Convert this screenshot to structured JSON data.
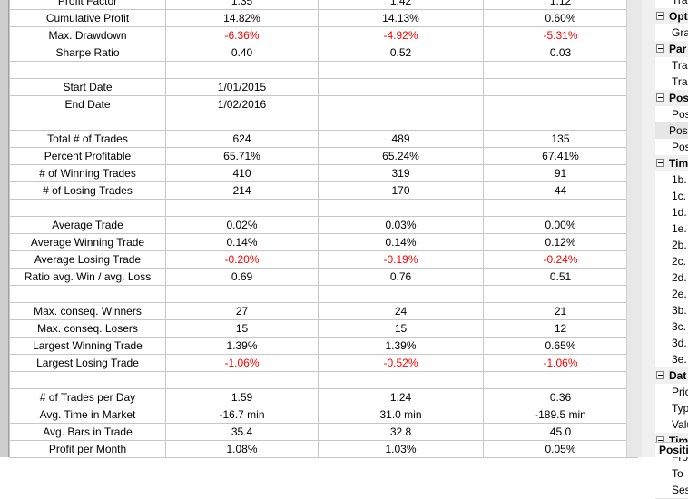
{
  "table": {
    "rows": [
      {
        "label": "Profit Factor",
        "values": [
          "1.35",
          "1.42",
          "1.12"
        ],
        "neg": false
      },
      {
        "label": "Cumulative Profit",
        "values": [
          "14.82%",
          "14.13%",
          "0.60%"
        ],
        "neg": false
      },
      {
        "label": "Max. Drawdown",
        "values": [
          "-6.36%",
          "-4.92%",
          "-5.31%"
        ],
        "neg": true
      },
      {
        "label": "Sharpe Ratio",
        "values": [
          "0.40",
          "0.52",
          "0.03"
        ],
        "neg": false
      },
      {
        "label": "",
        "values": [
          "",
          "",
          ""
        ],
        "neg": false
      },
      {
        "label": "Start Date",
        "values": [
          "1/01/2015",
          "",
          ""
        ],
        "neg": false
      },
      {
        "label": "End Date",
        "values": [
          "1/02/2016",
          "",
          ""
        ],
        "neg": false
      },
      {
        "label": "",
        "values": [
          "",
          "",
          ""
        ],
        "neg": false
      },
      {
        "label": "Total # of Trades",
        "values": [
          "624",
          "489",
          "135"
        ],
        "neg": false
      },
      {
        "label": "Percent Profitable",
        "values": [
          "65.71%",
          "65.24%",
          "67.41%"
        ],
        "neg": false
      },
      {
        "label": "# of Winning Trades",
        "values": [
          "410",
          "319",
          "91"
        ],
        "neg": false
      },
      {
        "label": "# of Losing Trades",
        "values": [
          "214",
          "170",
          "44"
        ],
        "neg": false
      },
      {
        "label": "",
        "values": [
          "",
          "",
          ""
        ],
        "neg": false
      },
      {
        "label": "Average Trade",
        "values": [
          "0.02%",
          "0.03%",
          "0.00%"
        ],
        "neg": false
      },
      {
        "label": "Average Winning Trade",
        "values": [
          "0.14%",
          "0.14%",
          "0.12%"
        ],
        "neg": false
      },
      {
        "label": "Average Losing Trade",
        "values": [
          "-0.20%",
          "-0.19%",
          "-0.24%"
        ],
        "neg": true
      },
      {
        "label": "Ratio avg. Win / avg. Loss",
        "values": [
          "0.69",
          "0.76",
          "0.51"
        ],
        "neg": false
      },
      {
        "label": "",
        "values": [
          "",
          "",
          ""
        ],
        "neg": false
      },
      {
        "label": "Max. conseq. Winners",
        "values": [
          "27",
          "24",
          "21"
        ],
        "neg": false
      },
      {
        "label": "Max. conseq. Losers",
        "values": [
          "15",
          "15",
          "12"
        ],
        "neg": false
      },
      {
        "label": "Largest Winning Trade",
        "values": [
          "1.39%",
          "1.39%",
          "0.65%"
        ],
        "neg": false
      },
      {
        "label": "Largest Losing Trade",
        "values": [
          "-1.06%",
          "-0.52%",
          "-1.06%"
        ],
        "neg": true
      },
      {
        "label": "",
        "values": [
          "",
          "",
          ""
        ],
        "neg": false
      },
      {
        "label": "# of Trades per Day",
        "values": [
          "1.59",
          "1.24",
          "0.36"
        ],
        "neg": false
      },
      {
        "label": "Avg. Time in Market",
        "values": [
          "-16.7 min",
          "31.0 min",
          "-189.5 min"
        ],
        "neg": false
      },
      {
        "label": "Avg. Bars in Trade",
        "values": [
          "35.4",
          "32.8",
          "45.0"
        ],
        "neg": false
      },
      {
        "label": "Profit per Month",
        "values": [
          "1.08%",
          "1.03%",
          "0.05%"
        ],
        "neg": false
      }
    ]
  },
  "property_grid": {
    "rows": [
      {
        "text": "Tra",
        "kind": "item"
      },
      {
        "text": "Opt",
        "kind": "cat"
      },
      {
        "text": "Gra",
        "kind": "item"
      },
      {
        "text": "Par",
        "kind": "cat"
      },
      {
        "text": "Tra",
        "kind": "item"
      },
      {
        "text": "Tra",
        "kind": "item"
      },
      {
        "text": "Pos",
        "kind": "cat"
      },
      {
        "text": "Pos",
        "kind": "item"
      },
      {
        "text": "Pos",
        "kind": "sel"
      },
      {
        "text": "Pos",
        "kind": "item"
      },
      {
        "text": "Tim",
        "kind": "cat"
      },
      {
        "text": "1b.",
        "kind": "item"
      },
      {
        "text": "1c.",
        "kind": "item"
      },
      {
        "text": "1d.",
        "kind": "item"
      },
      {
        "text": "1e.",
        "kind": "item"
      },
      {
        "text": "2b.",
        "kind": "item"
      },
      {
        "text": "2c.",
        "kind": "item"
      },
      {
        "text": "2d.",
        "kind": "item"
      },
      {
        "text": "2e.",
        "kind": "item"
      },
      {
        "text": "3b.",
        "kind": "item"
      },
      {
        "text": "3c.",
        "kind": "item"
      },
      {
        "text": "3d.",
        "kind": "item"
      },
      {
        "text": "3e.",
        "kind": "item"
      },
      {
        "text": "Dat",
        "kind": "cat"
      },
      {
        "text": "Pric",
        "kind": "item"
      },
      {
        "text": "Typ",
        "kind": "item"
      },
      {
        "text": "Valu",
        "kind": "item"
      },
      {
        "text": "Tim",
        "kind": "cat"
      },
      {
        "text": "Fro",
        "kind": "item"
      },
      {
        "text": "To",
        "kind": "item"
      },
      {
        "text": "Ses",
        "kind": "item"
      }
    ],
    "bottom_label": "Positi"
  },
  "colors": {
    "negative": "#ff0000"
  }
}
